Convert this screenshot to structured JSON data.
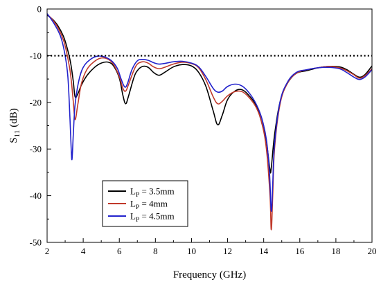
{
  "chart_data": {
    "type": "line",
    "title": "",
    "xlabel": "Frequency (GHz)",
    "ylabel": {
      "main": "S",
      "sub": "11",
      "unit": "(dB)"
    },
    "xlim": [
      2,
      20
    ],
    "ylim": [
      -50,
      0
    ],
    "xticks": [
      "2",
      "4",
      "6",
      "8",
      "10",
      "12",
      "14",
      "16",
      "18",
      "20"
    ],
    "yticks": [
      "0",
      "-10",
      "-20",
      "-30",
      "-40",
      "-50"
    ],
    "grid": false,
    "legend_position": "bottom-left",
    "reference_line": {
      "y": -10,
      "style": "dotted",
      "color": "#000000"
    },
    "series": [
      {
        "name": "L_P = 3.5mm",
        "label_main": "L",
        "label_sub": "P",
        "label_rest": " = 3.5mm",
        "color": "#000000",
        "points": [
          [
            2,
            -1.3
          ],
          [
            2.3,
            -2.2
          ],
          [
            2.6,
            -3.6
          ],
          [
            2.9,
            -5.8
          ],
          [
            3.1,
            -8.2
          ],
          [
            3.3,
            -11.5
          ],
          [
            3.45,
            -15.5
          ],
          [
            3.55,
            -18.8
          ],
          [
            3.7,
            -18.2
          ],
          [
            3.9,
            -16.3
          ],
          [
            4.2,
            -14.3
          ],
          [
            4.6,
            -12.6
          ],
          [
            5.0,
            -11.6
          ],
          [
            5.4,
            -11.4
          ],
          [
            5.7,
            -12.3
          ],
          [
            6.0,
            -14.8
          ],
          [
            6.2,
            -18.5
          ],
          [
            6.35,
            -20.3
          ],
          [
            6.5,
            -18.8
          ],
          [
            6.8,
            -14.8
          ],
          [
            7.0,
            -13.2
          ],
          [
            7.3,
            -12.3
          ],
          [
            7.6,
            -12.5
          ],
          [
            7.9,
            -13.6
          ],
          [
            8.2,
            -14.2
          ],
          [
            8.5,
            -13.6
          ],
          [
            9.0,
            -12.4
          ],
          [
            9.5,
            -11.9
          ],
          [
            10.0,
            -12.2
          ],
          [
            10.4,
            -13.6
          ],
          [
            10.8,
            -16.6
          ],
          [
            11.2,
            -21.8
          ],
          [
            11.45,
            -24.8
          ],
          [
            11.7,
            -22.8
          ],
          [
            12.0,
            -19.4
          ],
          [
            12.4,
            -17.6
          ],
          [
            12.8,
            -17.3
          ],
          [
            13.2,
            -18.6
          ],
          [
            13.6,
            -20.8
          ],
          [
            13.9,
            -24.5
          ],
          [
            14.15,
            -28.5
          ],
          [
            14.35,
            -34.5
          ],
          [
            14.42,
            -34.0
          ],
          [
            14.6,
            -27.0
          ],
          [
            14.9,
            -20.0
          ],
          [
            15.3,
            -16.0
          ],
          [
            15.8,
            -13.8
          ],
          [
            16.4,
            -13.2
          ],
          [
            17.0,
            -12.6
          ],
          [
            17.6,
            -12.3
          ],
          [
            18.2,
            -12.4
          ],
          [
            18.6,
            -13.0
          ],
          [
            19.0,
            -14.0
          ],
          [
            19.3,
            -14.6
          ],
          [
            19.6,
            -14.1
          ],
          [
            20.0,
            -12.2
          ]
        ]
      },
      {
        "name": "L_P = 4mm",
        "label_main": "L",
        "label_sub": "P",
        "label_rest": " = 4mm",
        "color": "#c0392b",
        "points": [
          [
            2,
            -1.1
          ],
          [
            2.3,
            -2.3
          ],
          [
            2.6,
            -4.0
          ],
          [
            2.9,
            -6.6
          ],
          [
            3.1,
            -9.6
          ],
          [
            3.3,
            -14.0
          ],
          [
            3.45,
            -19.8
          ],
          [
            3.55,
            -23.7
          ],
          [
            3.7,
            -20.5
          ],
          [
            3.9,
            -16.0
          ],
          [
            4.2,
            -13.0
          ],
          [
            4.6,
            -11.3
          ],
          [
            5.0,
            -10.5
          ],
          [
            5.4,
            -10.8
          ],
          [
            5.7,
            -12.0
          ],
          [
            6.0,
            -14.5
          ],
          [
            6.2,
            -17.0
          ],
          [
            6.35,
            -17.6
          ],
          [
            6.5,
            -16.3
          ],
          [
            6.8,
            -13.2
          ],
          [
            7.0,
            -11.8
          ],
          [
            7.3,
            -11.3
          ],
          [
            7.6,
            -11.6
          ],
          [
            7.9,
            -12.4
          ],
          [
            8.2,
            -12.8
          ],
          [
            8.5,
            -12.5
          ],
          [
            9.0,
            -11.8
          ],
          [
            9.5,
            -11.4
          ],
          [
            10.0,
            -11.7
          ],
          [
            10.4,
            -12.6
          ],
          [
            10.8,
            -15.2
          ],
          [
            11.2,
            -18.8
          ],
          [
            11.45,
            -20.3
          ],
          [
            11.7,
            -19.8
          ],
          [
            12.0,
            -18.6
          ],
          [
            12.4,
            -17.7
          ],
          [
            12.8,
            -17.7
          ],
          [
            13.2,
            -19.0
          ],
          [
            13.6,
            -21.2
          ],
          [
            13.9,
            -24.5
          ],
          [
            14.15,
            -30.0
          ],
          [
            14.35,
            -40.0
          ],
          [
            14.42,
            -47.3
          ],
          [
            14.5,
            -40.0
          ],
          [
            14.6,
            -30.0
          ],
          [
            14.9,
            -20.5
          ],
          [
            15.3,
            -16.0
          ],
          [
            15.8,
            -13.8
          ],
          [
            16.4,
            -13.0
          ],
          [
            17.0,
            -12.6
          ],
          [
            17.6,
            -12.3
          ],
          [
            18.2,
            -12.6
          ],
          [
            18.6,
            -13.2
          ],
          [
            19.0,
            -14.1
          ],
          [
            19.3,
            -14.8
          ],
          [
            19.6,
            -14.3
          ],
          [
            20.0,
            -12.8
          ]
        ]
      },
      {
        "name": "L_P = 4.5mm",
        "label_main": "L",
        "label_sub": "P",
        "label_rest": " = 4.5mm",
        "color": "#2222cc",
        "points": [
          [
            2,
            -1.0
          ],
          [
            2.3,
            -2.6
          ],
          [
            2.6,
            -4.6
          ],
          [
            2.8,
            -6.5
          ],
          [
            3.0,
            -10.0
          ],
          [
            3.15,
            -14.5
          ],
          [
            3.25,
            -22.0
          ],
          [
            3.33,
            -29.5
          ],
          [
            3.38,
            -32.2
          ],
          [
            3.45,
            -27.0
          ],
          [
            3.55,
            -20.5
          ],
          [
            3.75,
            -15.5
          ],
          [
            4.0,
            -12.5
          ],
          [
            4.4,
            -10.8
          ],
          [
            4.8,
            -10.1
          ],
          [
            5.2,
            -10.3
          ],
          [
            5.6,
            -11.2
          ],
          [
            5.9,
            -12.8
          ],
          [
            6.1,
            -15.0
          ],
          [
            6.3,
            -16.7
          ],
          [
            6.45,
            -16.0
          ],
          [
            6.7,
            -13.0
          ],
          [
            7.0,
            -11.1
          ],
          [
            7.3,
            -10.8
          ],
          [
            7.6,
            -11.0
          ],
          [
            7.9,
            -11.5
          ],
          [
            8.2,
            -11.8
          ],
          [
            8.6,
            -11.6
          ],
          [
            9.0,
            -11.3
          ],
          [
            9.5,
            -11.2
          ],
          [
            10.0,
            -11.6
          ],
          [
            10.4,
            -12.4
          ],
          [
            10.8,
            -14.5
          ],
          [
            11.2,
            -17.0
          ],
          [
            11.45,
            -17.8
          ],
          [
            11.7,
            -17.6
          ],
          [
            12.0,
            -16.6
          ],
          [
            12.4,
            -16.1
          ],
          [
            12.8,
            -16.5
          ],
          [
            13.2,
            -18.0
          ],
          [
            13.6,
            -20.5
          ],
          [
            13.9,
            -23.5
          ],
          [
            14.15,
            -28.0
          ],
          [
            14.32,
            -35.0
          ],
          [
            14.42,
            -43.3
          ],
          [
            14.5,
            -37.5
          ],
          [
            14.6,
            -29.0
          ],
          [
            14.9,
            -20.0
          ],
          [
            15.3,
            -15.8
          ],
          [
            15.8,
            -13.6
          ],
          [
            16.4,
            -13.0
          ],
          [
            17.0,
            -12.6
          ],
          [
            17.6,
            -12.5
          ],
          [
            18.2,
            -12.8
          ],
          [
            18.6,
            -13.6
          ],
          [
            19.0,
            -14.6
          ],
          [
            19.3,
            -15.1
          ],
          [
            19.6,
            -14.6
          ],
          [
            20.0,
            -13.0
          ]
        ]
      }
    ]
  }
}
